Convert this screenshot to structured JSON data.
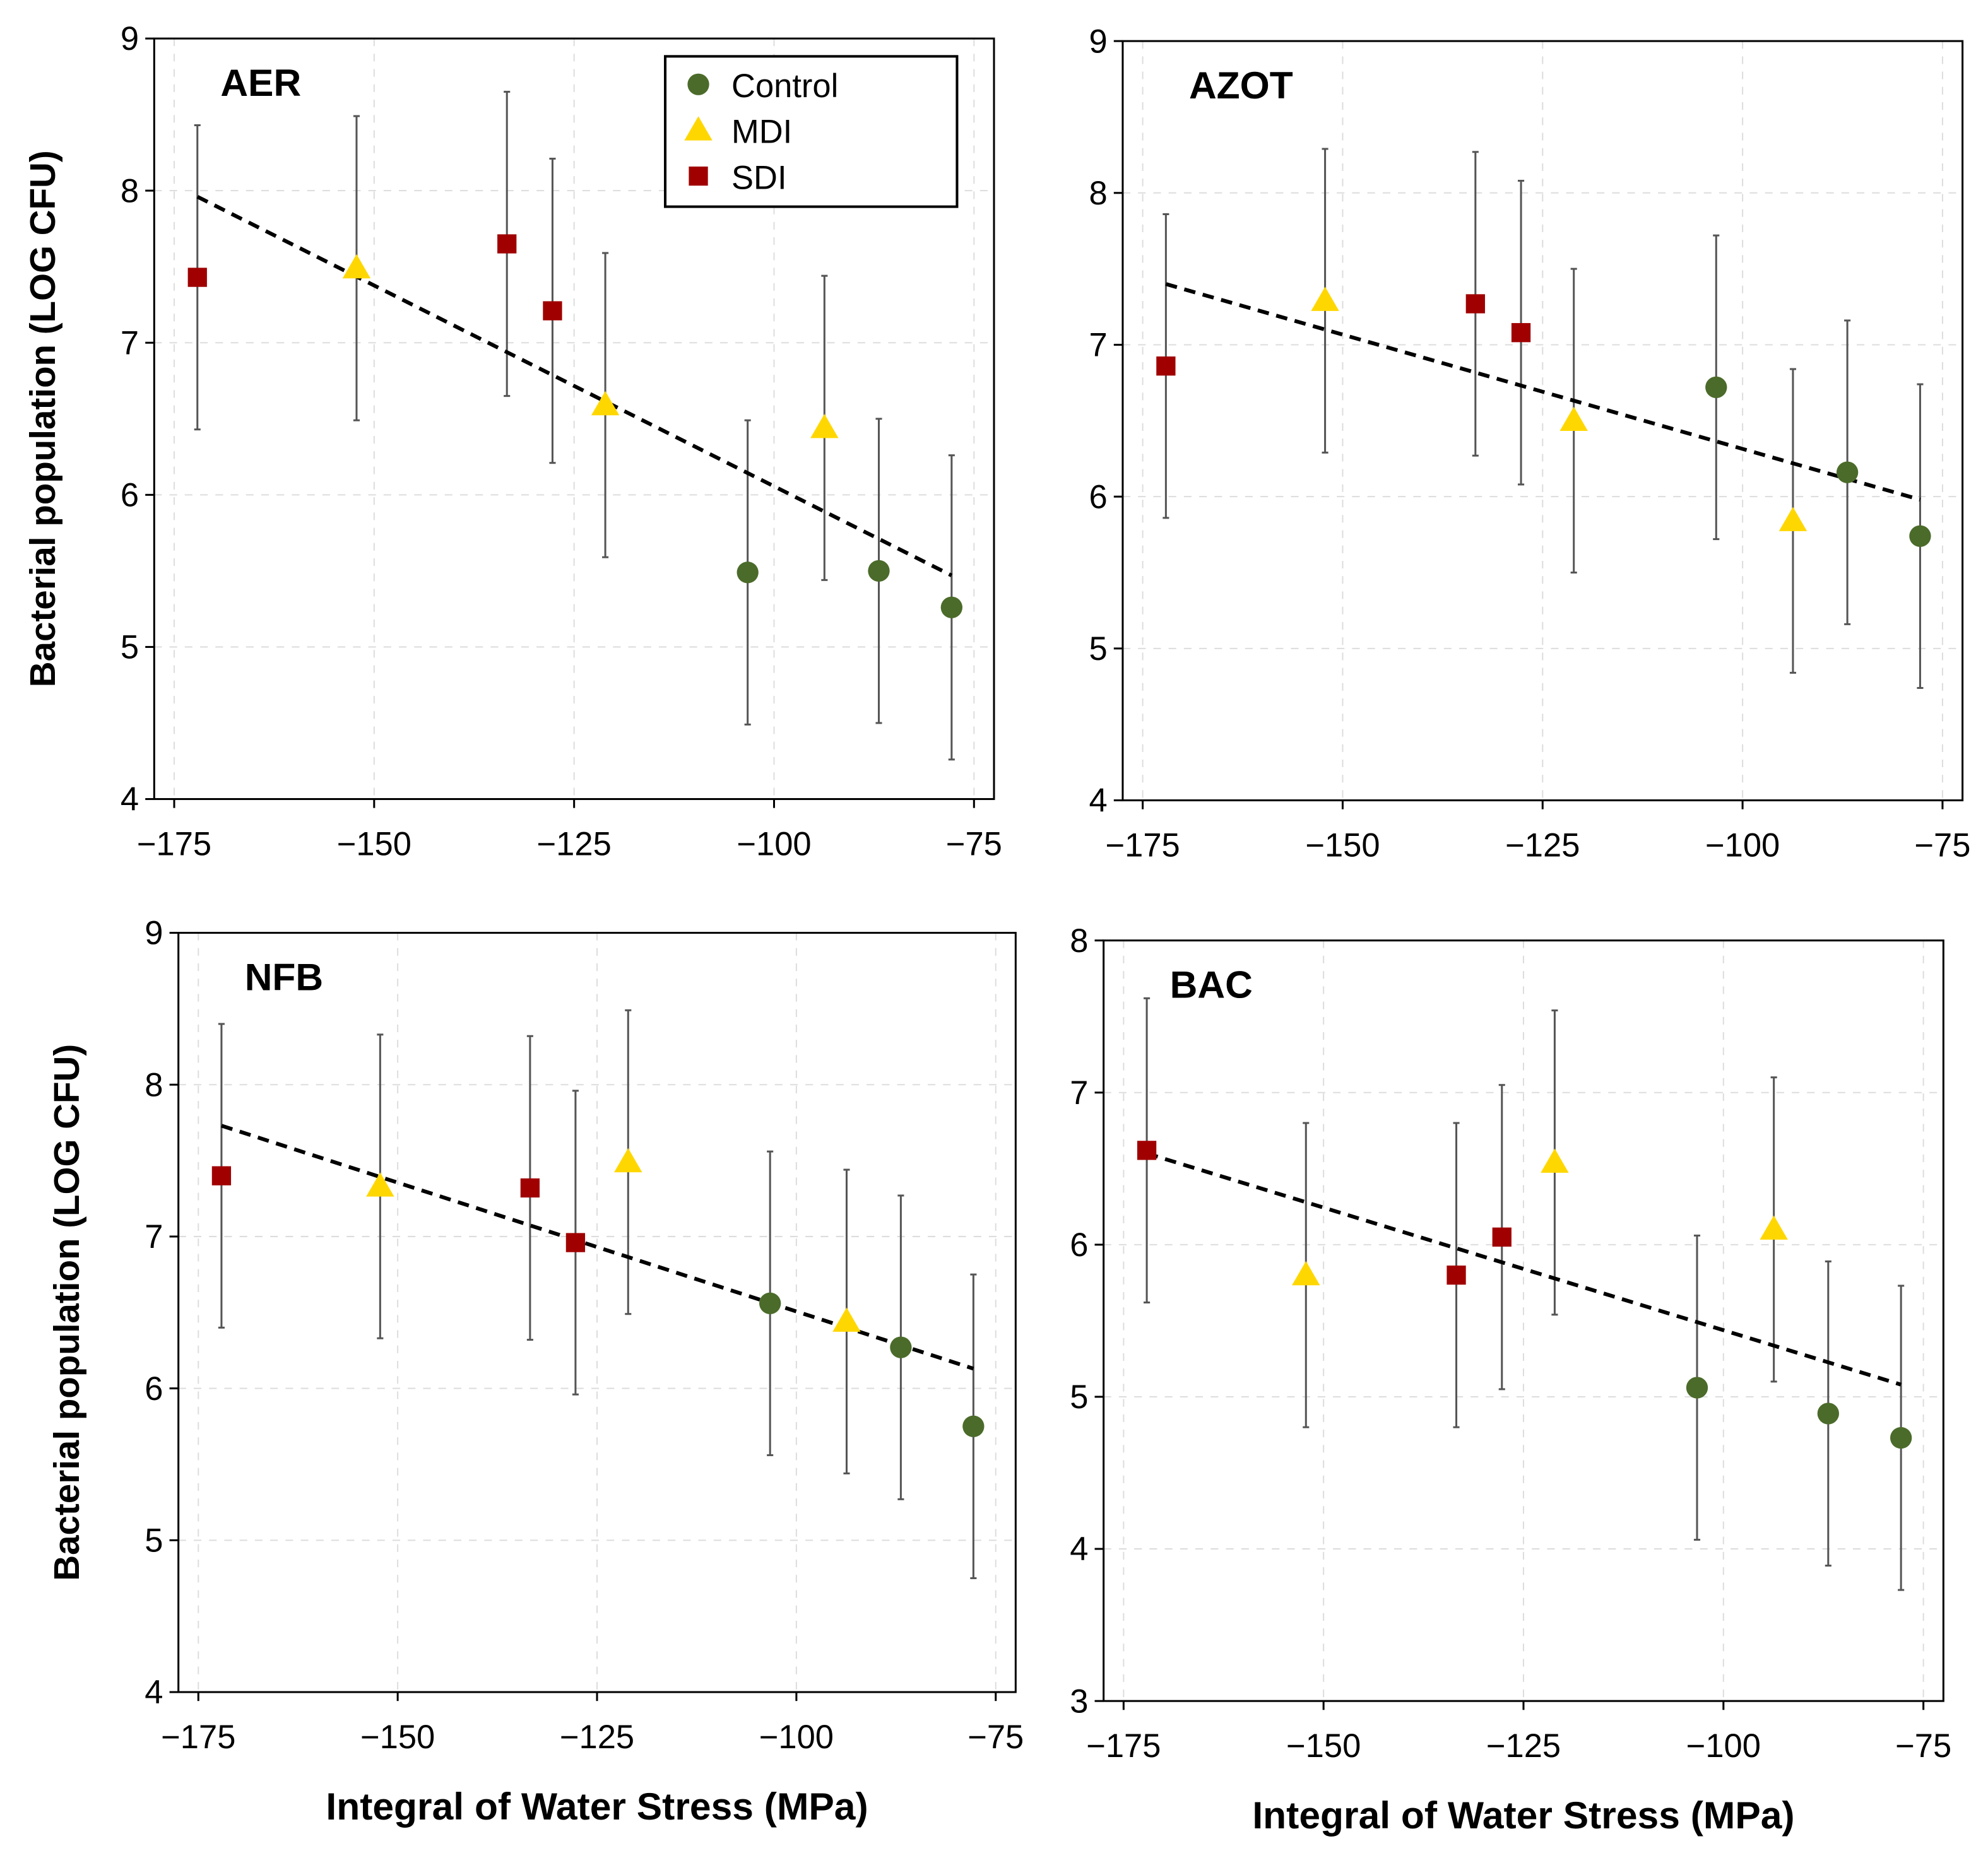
{
  "colors": {
    "Control": "#4b6b2a",
    "MDI": "#ffd700",
    "SDI": "#a00000",
    "trend": "#000000",
    "errorbar": "#555555",
    "grid": "#dddddd"
  },
  "legend": {
    "entries": [
      "Control",
      "MDI",
      "SDI"
    ],
    "placement": "top-right of AER panel"
  },
  "chart_data": [
    {
      "type": "scatter",
      "title": "AER",
      "xlabel": "",
      "ylabel": "Bacterial population (LOG CFU)",
      "xlim": [
        -177.5,
        -72.5
      ],
      "ylim": [
        4,
        9
      ],
      "xticks": [
        -175,
        -150,
        -125,
        -100,
        -75
      ],
      "yticks": [
        4,
        5,
        6,
        7,
        8,
        9
      ],
      "xtick_labels": [
        "−175",
        "−150",
        "−125",
        "−100",
        "−75"
      ],
      "ytick_labels": [
        "4",
        "5",
        "6",
        "7",
        "8",
        "9"
      ],
      "grid": true,
      "error": 1.0,
      "points": [
        {
          "group": "SDI",
          "x": -172.1,
          "y": 7.43
        },
        {
          "group": "MDI",
          "x": -152.2,
          "y": 7.49
        },
        {
          "group": "SDI",
          "x": -133.4,
          "y": 7.65
        },
        {
          "group": "SDI",
          "x": -127.7,
          "y": 7.21
        },
        {
          "group": "MDI",
          "x": -121.1,
          "y": 6.59
        },
        {
          "group": "Control",
          "x": -103.3,
          "y": 5.49
        },
        {
          "group": "MDI",
          "x": -93.7,
          "y": 6.44
        },
        {
          "group": "Control",
          "x": -86.9,
          "y": 5.5
        },
        {
          "group": "Control",
          "x": -77.8,
          "y": 5.26
        }
      ],
      "trend": [
        [
          -172.1,
          7.96
        ],
        [
          -77.8,
          5.47
        ]
      ]
    },
    {
      "type": "scatter",
      "title": "AZOT",
      "xlabel": "",
      "ylabel": "",
      "xlim": [
        -177.5,
        -72.5
      ],
      "ylim": [
        4,
        9
      ],
      "xticks": [
        -175,
        -150,
        -125,
        -100,
        -75
      ],
      "yticks": [
        4,
        5,
        6,
        7,
        8,
        9
      ],
      "xtick_labels": [
        "−175",
        "−150",
        "−125",
        "−100",
        "−75"
      ],
      "ytick_labels": [
        "4",
        "5",
        "6",
        "7",
        "8",
        "9"
      ],
      "grid": true,
      "error": 1.0,
      "points": [
        {
          "group": "SDI",
          "x": -172.1,
          "y": 6.86
        },
        {
          "group": "MDI",
          "x": -152.2,
          "y": 7.29
        },
        {
          "group": "SDI",
          "x": -133.4,
          "y": 7.27
        },
        {
          "group": "SDI",
          "x": -127.7,
          "y": 7.08
        },
        {
          "group": "MDI",
          "x": -121.1,
          "y": 6.5
        },
        {
          "group": "Control",
          "x": -103.3,
          "y": 6.72
        },
        {
          "group": "MDI",
          "x": -93.7,
          "y": 5.84
        },
        {
          "group": "Control",
          "x": -86.9,
          "y": 6.16
        },
        {
          "group": "Control",
          "x": -77.8,
          "y": 5.74
        }
      ],
      "trend": [
        [
          -172.1,
          7.4
        ],
        [
          -77.8,
          5.98
        ]
      ]
    },
    {
      "type": "scatter",
      "title": "NFB",
      "xlabel": "Integral of Water Stress (MPa)",
      "ylabel": "Bacterial population (LOG CFU)",
      "xlim": [
        -177.5,
        -72.5
      ],
      "ylim": [
        4,
        9
      ],
      "xticks": [
        -175,
        -150,
        -125,
        -100,
        -75
      ],
      "yticks": [
        4,
        5,
        6,
        7,
        8,
        9
      ],
      "xtick_labels": [
        "−175",
        "−150",
        "−125",
        "−100",
        "−75"
      ],
      "ytick_labels": [
        "4",
        "5",
        "6",
        "7",
        "8",
        "9"
      ],
      "grid": true,
      "error": 1.0,
      "points": [
        {
          "group": "SDI",
          "x": -172.1,
          "y": 7.4
        },
        {
          "group": "MDI",
          "x": -152.2,
          "y": 7.33
        },
        {
          "group": "SDI",
          "x": -133.4,
          "y": 7.32
        },
        {
          "group": "SDI",
          "x": -127.7,
          "y": 6.96
        },
        {
          "group": "MDI",
          "x": -121.1,
          "y": 7.49
        },
        {
          "group": "Control",
          "x": -103.3,
          "y": 6.56
        },
        {
          "group": "MDI",
          "x": -93.7,
          "y": 6.44
        },
        {
          "group": "Control",
          "x": -86.9,
          "y": 6.27
        },
        {
          "group": "Control",
          "x": -77.8,
          "y": 5.75
        }
      ],
      "trend": [
        [
          -172.1,
          7.73
        ],
        [
          -77.8,
          6.13
        ]
      ]
    },
    {
      "type": "scatter",
      "title": "BAC",
      "xlabel": "Integral of Water Stress (MPa)",
      "ylabel": "",
      "xlim": [
        -177.5,
        -72.5
      ],
      "ylim": [
        3,
        8
      ],
      "xticks": [
        -175,
        -150,
        -125,
        -100,
        -75
      ],
      "yticks": [
        3,
        4,
        5,
        6,
        7,
        8
      ],
      "xtick_labels": [
        "−175",
        "−150",
        "−125",
        "−100",
        "−75"
      ],
      "ytick_labels": [
        "3",
        "4",
        "5",
        "6",
        "7",
        "8"
      ],
      "grid": true,
      "error": 1.0,
      "points": [
        {
          "group": "SDI",
          "x": -172.1,
          "y": 6.62
        },
        {
          "group": "MDI",
          "x": -152.2,
          "y": 5.8
        },
        {
          "group": "SDI",
          "x": -133.4,
          "y": 5.8
        },
        {
          "group": "SDI",
          "x": -127.7,
          "y": 6.05
        },
        {
          "group": "MDI",
          "x": -121.1,
          "y": 6.54
        },
        {
          "group": "Control",
          "x": -103.3,
          "y": 5.06
        },
        {
          "group": "MDI",
          "x": -93.7,
          "y": 6.1
        },
        {
          "group": "Control",
          "x": -86.9,
          "y": 4.89
        },
        {
          "group": "Control",
          "x": -77.8,
          "y": 4.73
        }
      ],
      "trend": [
        [
          -172.1,
          6.6
        ],
        [
          -77.8,
          5.08
        ]
      ]
    }
  ]
}
